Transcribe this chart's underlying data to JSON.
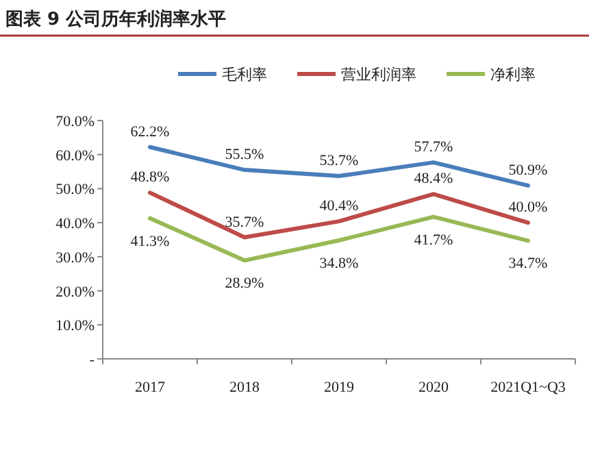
{
  "chart_data": {
    "type": "line",
    "title": "图表 9 公司历年利润率水平",
    "categories": [
      "2017",
      "2018",
      "2019",
      "2020",
      "2021Q1~Q3"
    ],
    "series": [
      {
        "name": "毛利率",
        "color": "#4a7ebb",
        "values": [
          62.2,
          55.5,
          53.7,
          57.7,
          50.9
        ],
        "value_labels": [
          "62.2%",
          "55.5%",
          "53.7%",
          "57.7%",
          "50.9%"
        ]
      },
      {
        "name": "营业利润率",
        "color": "#be4b48",
        "values": [
          48.8,
          35.7,
          40.4,
          48.4,
          40.0
        ],
        "value_labels": [
          "48.8%",
          "35.7%",
          "40.4%",
          "48.4%",
          "40.0%"
        ]
      },
      {
        "name": "净利率",
        "color": "#98b954",
        "values": [
          41.3,
          28.9,
          34.8,
          41.7,
          34.7
        ],
        "value_labels": [
          "41.3%",
          "28.9%",
          "34.8%",
          "41.7%",
          "34.7%"
        ]
      }
    ],
    "ylim": [
      0,
      70
    ],
    "yticks": [
      {
        "value": 0,
        "label": "-"
      },
      {
        "value": 10,
        "label": "10.0%"
      },
      {
        "value": 20,
        "label": "20.0%"
      },
      {
        "value": 30,
        "label": "30.0%"
      },
      {
        "value": 40,
        "label": "40.0%"
      },
      {
        "value": 50,
        "label": "50.0%"
      },
      {
        "value": 60,
        "label": "60.0%"
      },
      {
        "value": 70,
        "label": "70.0%"
      }
    ],
    "legend": "top"
  }
}
